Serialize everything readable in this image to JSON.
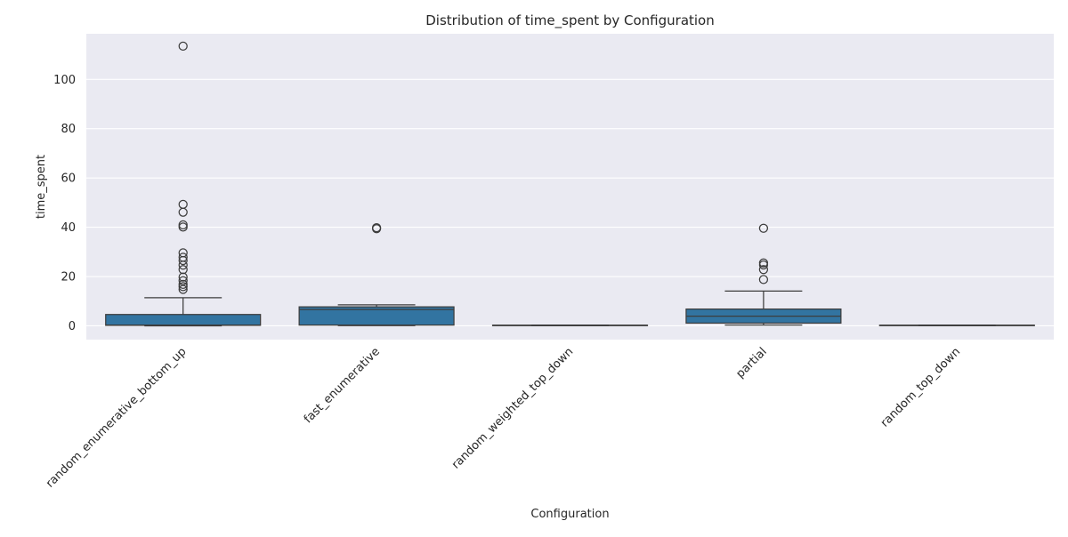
{
  "chart_data": {
    "type": "box",
    "title": "Distribution of time_spent by Configuration",
    "xlabel": "Configuration",
    "ylabel": "time_spent",
    "ylim": [
      -5.6,
      118.5
    ],
    "yticks": [
      0,
      20,
      40,
      60,
      80,
      100
    ],
    "grid": true,
    "legend": "none",
    "colors": {
      "background": "#eaeaf2",
      "grid": "#ffffff",
      "box_fill": "#3274a1",
      "line": "#3d3d3d"
    },
    "categories": [
      "random_enumerative_bottom_up",
      "fast_enumerative",
      "random_weighted_top_down",
      "partial",
      "random_top_down"
    ],
    "boxes": [
      {
        "whisker_low": 0,
        "q1": 0.2,
        "median": 0.3,
        "q3": 4.6,
        "whisker_high": 11.4,
        "outliers": [
          113.5,
          49.3,
          46.1,
          41.0,
          40.1,
          29.6,
          27.8,
          26.5,
          24.6,
          22.8,
          19.8,
          18.3,
          16.8,
          15.9,
          14.8
        ]
      },
      {
        "whisker_low": 0.1,
        "q1": 0.3,
        "median": 6.6,
        "q3": 7.7,
        "whisker_high": 8.5,
        "outliers": [
          39.4,
          39.8
        ]
      },
      {
        "whisker_low": 0.1,
        "q1": 0.15,
        "median": 0.2,
        "q3": 0.25,
        "whisker_high": 0.3,
        "outliers": []
      },
      {
        "whisker_low": 0.3,
        "q1": 1.1,
        "median": 3.9,
        "q3": 6.8,
        "whisker_high": 14.1,
        "outliers": [
          39.6,
          25.5,
          24.7,
          22.8,
          18.8
        ]
      },
      {
        "whisker_low": 0.1,
        "q1": 0.15,
        "median": 0.2,
        "q3": 0.25,
        "whisker_high": 0.3,
        "outliers": []
      }
    ]
  }
}
